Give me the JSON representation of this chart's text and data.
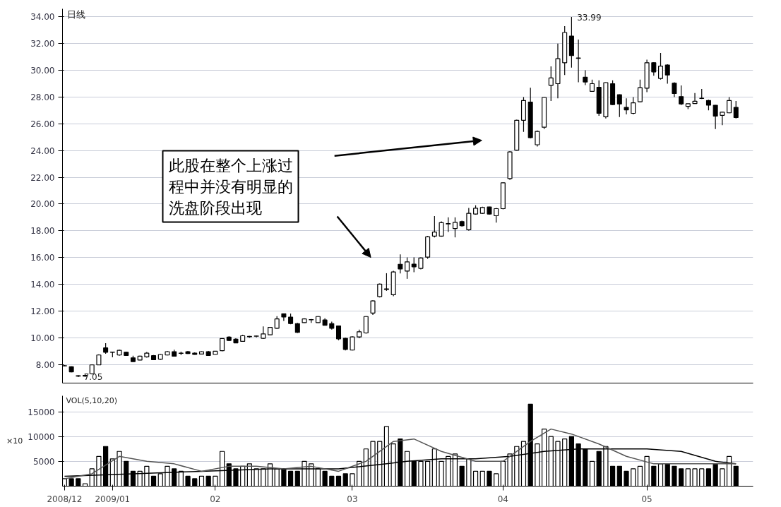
{
  "chart_data": [
    {
      "type": "candlestick",
      "title": "日线",
      "categories": [
        "2008/12",
        null,
        null,
        null,
        null,
        null,
        null,
        "2009/01",
        null,
        null,
        null,
        null,
        null,
        null,
        null,
        null,
        null,
        null,
        null,
        null,
        null,
        null,
        "02",
        null,
        null,
        null,
        null,
        null,
        null,
        null,
        null,
        null,
        null,
        null,
        null,
        null,
        null,
        null,
        null,
        null,
        null,
        null,
        "03",
        null,
        null,
        null,
        null,
        null,
        null,
        null,
        null,
        null,
        null,
        null,
        null,
        null,
        null,
        null,
        null,
        null,
        null,
        null,
        null,
        null,
        "04",
        null,
        null,
        null,
        null,
        null,
        null,
        null,
        null,
        null,
        null,
        null,
        null,
        null,
        null,
        null,
        null,
        null,
        null,
        null,
        null,
        "05",
        null,
        null,
        null,
        null,
        null,
        null,
        null,
        null,
        null,
        null,
        null,
        null,
        null
      ],
      "ohlc": [
        [
          7.88,
          7.95,
          7.85,
          7.9
        ],
        [
          7.82,
          7.86,
          7.4,
          7.44
        ],
        [
          7.15,
          7.2,
          7.05,
          7.12
        ],
        [
          7.12,
          7.3,
          7.08,
          7.18
        ],
        [
          7.3,
          8.0,
          7.25,
          7.96
        ],
        [
          7.96,
          8.75,
          7.95,
          8.7
        ],
        [
          9.23,
          9.58,
          8.79,
          8.91
        ],
        [
          8.9,
          8.95,
          8.53,
          8.92
        ],
        [
          8.7,
          9.1,
          8.65,
          9.05
        ],
        [
          8.91,
          8.95,
          8.63,
          8.67
        ],
        [
          8.49,
          8.65,
          8.2,
          8.21
        ],
        [
          8.32,
          8.65,
          8.3,
          8.61
        ],
        [
          8.56,
          8.92,
          8.5,
          8.84
        ],
        [
          8.65,
          8.7,
          8.33,
          8.35
        ],
        [
          8.39,
          8.78,
          8.35,
          8.74
        ],
        [
          8.7,
          9.0,
          8.68,
          8.95
        ],
        [
          8.95,
          9.1,
          8.6,
          8.61
        ],
        [
          8.82,
          8.95,
          8.7,
          8.84
        ],
        [
          8.95,
          9.0,
          8.78,
          8.81
        ],
        [
          8.84,
          8.9,
          8.72,
          8.74
        ],
        [
          8.77,
          8.98,
          8.75,
          8.95
        ],
        [
          8.95,
          9.0,
          8.65,
          8.67
        ],
        [
          8.74,
          9.0,
          8.72,
          8.98
        ],
        [
          9.02,
          9.95,
          8.98,
          9.93
        ],
        [
          10.04,
          10.1,
          9.75,
          9.79
        ],
        [
          9.89,
          9.95,
          9.58,
          9.61
        ],
        [
          9.72,
          10.2,
          9.7,
          10.14
        ],
        [
          10.07,
          10.12,
          10.0,
          10.1
        ],
        [
          10.1,
          10.15,
          10.02,
          10.12
        ],
        [
          9.95,
          10.84,
          9.9,
          10.28
        ],
        [
          10.21,
          10.8,
          10.18,
          10.77
        ],
        [
          10.7,
          11.6,
          10.65,
          11.4
        ],
        [
          11.79,
          11.8,
          11.25,
          11.54
        ],
        [
          11.54,
          11.8,
          11.0,
          11.05
        ],
        [
          11.05,
          11.1,
          10.35,
          10.39
        ],
        [
          11.12,
          11.45,
          11.1,
          11.4
        ],
        [
          11.33,
          11.4,
          11.1,
          11.35
        ],
        [
          11.12,
          11.6,
          11.1,
          11.58
        ],
        [
          11.32,
          11.45,
          10.9,
          10.93
        ],
        [
          11.05,
          11.2,
          10.6,
          10.7
        ],
        [
          10.88,
          10.9,
          9.8,
          9.91
        ],
        [
          9.95,
          10.0,
          9.05,
          9.12
        ],
        [
          9.07,
          10.1,
          9.05,
          10.05
        ],
        [
          10.05,
          10.6,
          9.95,
          10.44
        ],
        [
          10.35,
          11.6,
          10.3,
          11.58
        ],
        [
          11.84,
          12.8,
          11.7,
          12.75
        ],
        [
          13.07,
          14.05,
          13.0,
          14.0
        ],
        [
          13.6,
          14.82,
          13.5,
          13.65
        ],
        [
          13.21,
          15.0,
          13.1,
          14.91
        ],
        [
          15.49,
          16.23,
          14.8,
          15.14
        ],
        [
          14.98,
          16.0,
          14.4,
          15.67
        ],
        [
          15.5,
          16.0,
          14.9,
          15.3
        ],
        [
          15.18,
          16.0,
          15.1,
          15.96
        ],
        [
          16.02,
          17.6,
          15.9,
          17.54
        ],
        [
          17.6,
          19.1,
          17.5,
          17.9
        ],
        [
          17.6,
          18.7,
          17.55,
          18.6
        ],
        [
          18.5,
          19.0,
          17.9,
          18.53
        ],
        [
          18.16,
          19.0,
          17.5,
          18.63
        ],
        [
          18.68,
          18.75,
          18.3,
          18.37
        ],
        [
          18.07,
          19.7,
          18.0,
          19.3
        ],
        [
          19.25,
          19.9,
          19.2,
          19.68
        ],
        [
          19.3,
          19.8,
          19.25,
          19.74
        ],
        [
          19.77,
          19.8,
          19.2,
          19.25
        ],
        [
          19.12,
          19.7,
          18.6,
          19.65
        ],
        [
          19.65,
          21.6,
          19.6,
          21.58
        ],
        [
          21.9,
          23.95,
          21.8,
          23.9
        ],
        [
          24.03,
          26.3,
          24.0,
          26.26
        ],
        [
          26.26,
          28.0,
          25.4,
          27.74
        ],
        [
          27.62,
          28.7,
          24.9,
          24.96
        ],
        [
          24.43,
          25.5,
          24.3,
          25.43
        ],
        [
          25.74,
          28.0,
          25.6,
          27.97
        ],
        [
          28.87,
          30.3,
          27.7,
          29.43
        ],
        [
          29.0,
          32.0,
          27.9,
          30.87
        ],
        [
          30.57,
          33.3,
          29.65,
          32.83
        ],
        [
          32.56,
          33.99,
          30.2,
          31.1
        ],
        [
          30.92,
          32.3,
          29.1,
          30.9
        ],
        [
          29.48,
          30.0,
          28.9,
          29.13
        ],
        [
          28.43,
          29.3,
          28.4,
          29.0
        ],
        [
          28.73,
          29.25,
          26.6,
          26.78
        ],
        [
          26.52,
          29.1,
          26.4,
          29.08
        ],
        [
          29.0,
          29.25,
          27.4,
          27.44
        ],
        [
          28.17,
          28.2,
          26.5,
          27.48
        ],
        [
          27.23,
          27.9,
          26.7,
          27.04
        ],
        [
          26.78,
          28.0,
          26.7,
          27.57
        ],
        [
          27.65,
          29.3,
          27.6,
          28.7
        ],
        [
          28.66,
          30.8,
          28.37,
          30.57
        ],
        [
          30.57,
          30.6,
          29.6,
          29.88
        ],
        [
          29.39,
          31.3,
          29.3,
          30.31
        ],
        [
          30.4,
          30.45,
          29.0,
          29.65
        ],
        [
          29.04,
          29.1,
          28.0,
          28.26
        ],
        [
          28.03,
          28.87,
          27.4,
          27.48
        ],
        [
          27.3,
          27.5,
          27.1,
          27.5
        ],
        [
          27.51,
          28.3,
          27.5,
          27.69
        ],
        [
          27.9,
          28.6,
          27.85,
          27.91
        ],
        [
          27.74,
          27.8,
          27.0,
          27.39
        ],
        [
          27.39,
          27.4,
          25.6,
          26.57
        ],
        [
          26.63,
          26.9,
          25.9,
          26.87
        ],
        [
          26.82,
          28.0,
          26.8,
          27.74
        ],
        [
          27.23,
          27.7,
          26.4,
          26.47
        ]
      ],
      "colors": [
        "#ffffff",
        "#000000",
        "#000000",
        "#ffffff",
        "#ffffff",
        "#ffffff",
        "#000000",
        "#ffffff",
        "#ffffff",
        "#000000",
        "#000000",
        "#ffffff",
        "#ffffff",
        "#000000",
        "#ffffff",
        "#ffffff",
        "#000000",
        "#ffffff",
        "#000000",
        "#000000",
        "#ffffff",
        "#000000",
        "#ffffff",
        "#ffffff",
        "#000000",
        "#000000",
        "#ffffff",
        "#ffffff",
        "#ffffff",
        "#ffffff",
        "#ffffff",
        "#ffffff",
        "#000000",
        "#000000",
        "#000000",
        "#ffffff",
        "#ffffff",
        "#ffffff",
        "#000000",
        "#000000",
        "#000000",
        "#000000",
        "#ffffff",
        "#ffffff",
        "#ffffff",
        "#ffffff",
        "#ffffff",
        "#ffffff",
        "#ffffff",
        "#000000",
        "#ffffff",
        "#000000",
        "#ffffff",
        "#ffffff",
        "#ffffff",
        "#ffffff",
        "#ffffff",
        "#ffffff",
        "#000000",
        "#ffffff",
        "#ffffff",
        "#ffffff",
        "#000000",
        "#ffffff",
        "#ffffff",
        "#ffffff",
        "#ffffff",
        "#ffffff",
        "#000000",
        "#ffffff",
        "#ffffff",
        "#ffffff",
        "#ffffff",
        "#ffffff",
        "#000000",
        "#000000",
        "#000000",
        "#ffffff",
        "#000000",
        "#ffffff",
        "#000000",
        "#000000",
        "#000000",
        "#ffffff",
        "#ffffff",
        "#ffffff",
        "#000000",
        "#ffffff",
        "#000000",
        "#000000",
        "#000000",
        "#ffffff",
        "#ffffff",
        "#ffffff",
        "#000000",
        "#000000",
        "#ffffff",
        "#ffffff",
        "#000000"
      ],
      "ylim": [
        6.6,
        34.6
      ],
      "yticks": [
        {
          "value": 8,
          "label": "8.00"
        },
        {
          "value": 10,
          "label": "10.00"
        },
        {
          "value": 12,
          "label": "12.00"
        },
        {
          "value": 14,
          "label": "14.00"
        },
        {
          "value": 16,
          "label": "16.00"
        },
        {
          "value": 18,
          "label": "18.00"
        },
        {
          "value": 20,
          "label": "20.00"
        },
        {
          "value": 22,
          "label": "22.00"
        },
        {
          "value": 24,
          "label": "24.00"
        },
        {
          "value": 26,
          "label": "26.00"
        },
        {
          "value": 28,
          "label": "28.00"
        },
        {
          "value": 30,
          "label": "30.00"
        },
        {
          "value": 32,
          "label": "32.00"
        },
        {
          "value": 34,
          "label": "34.00"
        }
      ],
      "grid": "y",
      "tick_labels": "y",
      "annotations": [
        "33.99",
        "7.05",
        "此股在整个上涨过程中并没有明显的洗盘阶段出现"
      ]
    },
    {
      "type": "bar",
      "categories": [
        "2008/12",
        null,
        null,
        null,
        null,
        null,
        null,
        "2009/01",
        null,
        null,
        null,
        null,
        null,
        null,
        null,
        null,
        null,
        null,
        null,
        null,
        null,
        null,
        "02",
        null,
        null,
        null,
        null,
        null,
        null,
        null,
        null,
        null,
        null,
        null,
        null,
        null,
        null,
        null,
        null,
        null,
        null,
        null,
        "03",
        null,
        null,
        null,
        null,
        null,
        null,
        null,
        null,
        null,
        null,
        null,
        null,
        null,
        null,
        null,
        null,
        null,
        null,
        null,
        null,
        null,
        "04",
        null,
        null,
        null,
        null,
        null,
        null,
        null,
        null,
        null,
        null,
        null,
        null,
        null,
        null,
        null,
        null,
        null,
        null,
        null,
        null,
        "05",
        null,
        null,
        null,
        null,
        null,
        null,
        null,
        null,
        null,
        null,
        null,
        null,
        null
      ],
      "series": [
        {
          "type": "bar",
          "values": [
            1500,
            1500,
            1500,
            500,
            3500,
            6000,
            8000,
            5500,
            7000,
            5000,
            3000,
            3000,
            4000,
            2000,
            2500,
            4000,
            3500,
            3000,
            2000,
            1500,
            2000,
            2000,
            2000,
            7000,
            4500,
            3500,
            4000,
            4500,
            3500,
            3500,
            4500,
            3500,
            3500,
            3000,
            3000,
            5000,
            4500,
            3500,
            3000,
            2000,
            2000,
            2500,
            2500,
            5000,
            7500,
            9000,
            9000,
            12000,
            8500,
            9500,
            7000,
            5000,
            5000,
            5000,
            7500,
            5000,
            6000,
            6500,
            4000,
            5500,
            3000,
            3000,
            3000,
            2500,
            5000,
            6500,
            8000,
            9000,
            16500,
            8500,
            11500,
            10000,
            9000,
            9500,
            10000,
            8500,
            7500,
            5000,
            7000,
            8000,
            4000,
            4000,
            3000,
            3500,
            4000,
            6000,
            4000,
            4500,
            4500,
            4000,
            3500,
            3500,
            3500,
            3500,
            3500,
            4500,
            3500,
            6000,
            4000
          ],
          "colors": [
            "#ffffff",
            "#000000",
            "#000000",
            "#ffffff",
            "#ffffff",
            "#ffffff",
            "#000000",
            "#ffffff",
            "#ffffff",
            "#000000",
            "#000000",
            "#ffffff",
            "#ffffff",
            "#000000",
            "#ffffff",
            "#ffffff",
            "#000000",
            "#ffffff",
            "#000000",
            "#000000",
            "#ffffff",
            "#000000",
            "#ffffff",
            "#ffffff",
            "#000000",
            "#000000",
            "#ffffff",
            "#ffffff",
            "#ffffff",
            "#ffffff",
            "#ffffff",
            "#ffffff",
            "#000000",
            "#000000",
            "#000000",
            "#ffffff",
            "#ffffff",
            "#ffffff",
            "#000000",
            "#000000",
            "#000000",
            "#000000",
            "#ffffff",
            "#ffffff",
            "#ffffff",
            "#ffffff",
            "#ffffff",
            "#ffffff",
            "#ffffff",
            "#000000",
            "#ffffff",
            "#000000",
            "#ffffff",
            "#ffffff",
            "#ffffff",
            "#ffffff",
            "#ffffff",
            "#ffffff",
            "#000000",
            "#ffffff",
            "#ffffff",
            "#ffffff",
            "#000000",
            "#ffffff",
            "#ffffff",
            "#ffffff",
            "#ffffff",
            "#ffffff",
            "#000000",
            "#ffffff",
            "#ffffff",
            "#ffffff",
            "#ffffff",
            "#ffffff",
            "#000000",
            "#000000",
            "#000000",
            "#ffffff",
            "#000000",
            "#ffffff",
            "#000000",
            "#000000",
            "#000000",
            "#ffffff",
            "#ffffff",
            "#ffffff",
            "#000000",
            "#ffffff",
            "#000000",
            "#000000",
            "#000000",
            "#ffffff",
            "#ffffff",
            "#ffffff",
            "#000000",
            "#000000",
            "#ffffff",
            "#ffffff",
            "#000000"
          ]
        },
        {
          "type": "line",
          "color": "#000000",
          "values": [
            2000,
            null,
            null,
            null,
            null,
            null,
            null,
            null,
            null,
            null,
            2500,
            null,
            null,
            null,
            null,
            null,
            null,
            null,
            null,
            null,
            3000,
            null,
            null,
            null,
            null,
            null,
            null,
            null,
            null,
            null,
            3500,
            null,
            null,
            null,
            null,
            null,
            null,
            null,
            null,
            null,
            3500,
            null,
            null,
            null,
            null,
            null,
            null,
            4500,
            null,
            null,
            5000,
            null,
            null,
            null,
            null,
            5500,
            null,
            null,
            null,
            null,
            5500,
            null,
            null,
            null,
            null,
            6000,
            null,
            null,
            null,
            null,
            7000,
            null,
            null,
            null,
            null,
            7500,
            null,
            null,
            null,
            null,
            7500,
            null,
            null,
            null,
            null,
            7500,
            null,
            null,
            null,
            null,
            7000,
            null,
            null,
            null,
            null,
            5000,
            null,
            null,
            4500
          ]
        },
        {
          "type": "line",
          "color": "#555555",
          "values": [
            1500,
            null,
            null,
            null,
            2500,
            null,
            null,
            null,
            6000,
            null,
            null,
            null,
            5000,
            null,
            null,
            null,
            4500,
            null,
            null,
            null,
            3000,
            null,
            null,
            null,
            4000,
            null,
            null,
            null,
            4000,
            null,
            null,
            null,
            3500,
            null,
            null,
            null,
            4000,
            null,
            null,
            null,
            3000,
            null,
            null,
            null,
            5000,
            null,
            null,
            null,
            9000,
            null,
            null,
            9500,
            null,
            null,
            null,
            7000,
            null,
            null,
            null,
            null,
            5000,
            null,
            null,
            null,
            5000,
            null,
            null,
            null,
            9000,
            null,
            null,
            11500,
            null,
            null,
            10500,
            null,
            null,
            null,
            8500,
            null,
            null,
            null,
            6000,
            null,
            null,
            null,
            4500,
            null,
            null,
            null,
            4500,
            null,
            null,
            null,
            null,
            4500,
            null,
            null,
            4500
          ]
        }
      ],
      "ylim": [
        0,
        18200
      ],
      "yticks": [
        5000,
        10000,
        15000
      ],
      "grid": "y",
      "annotations": [
        "VOL(5,10,20)",
        "×10"
      ]
    }
  ]
}
